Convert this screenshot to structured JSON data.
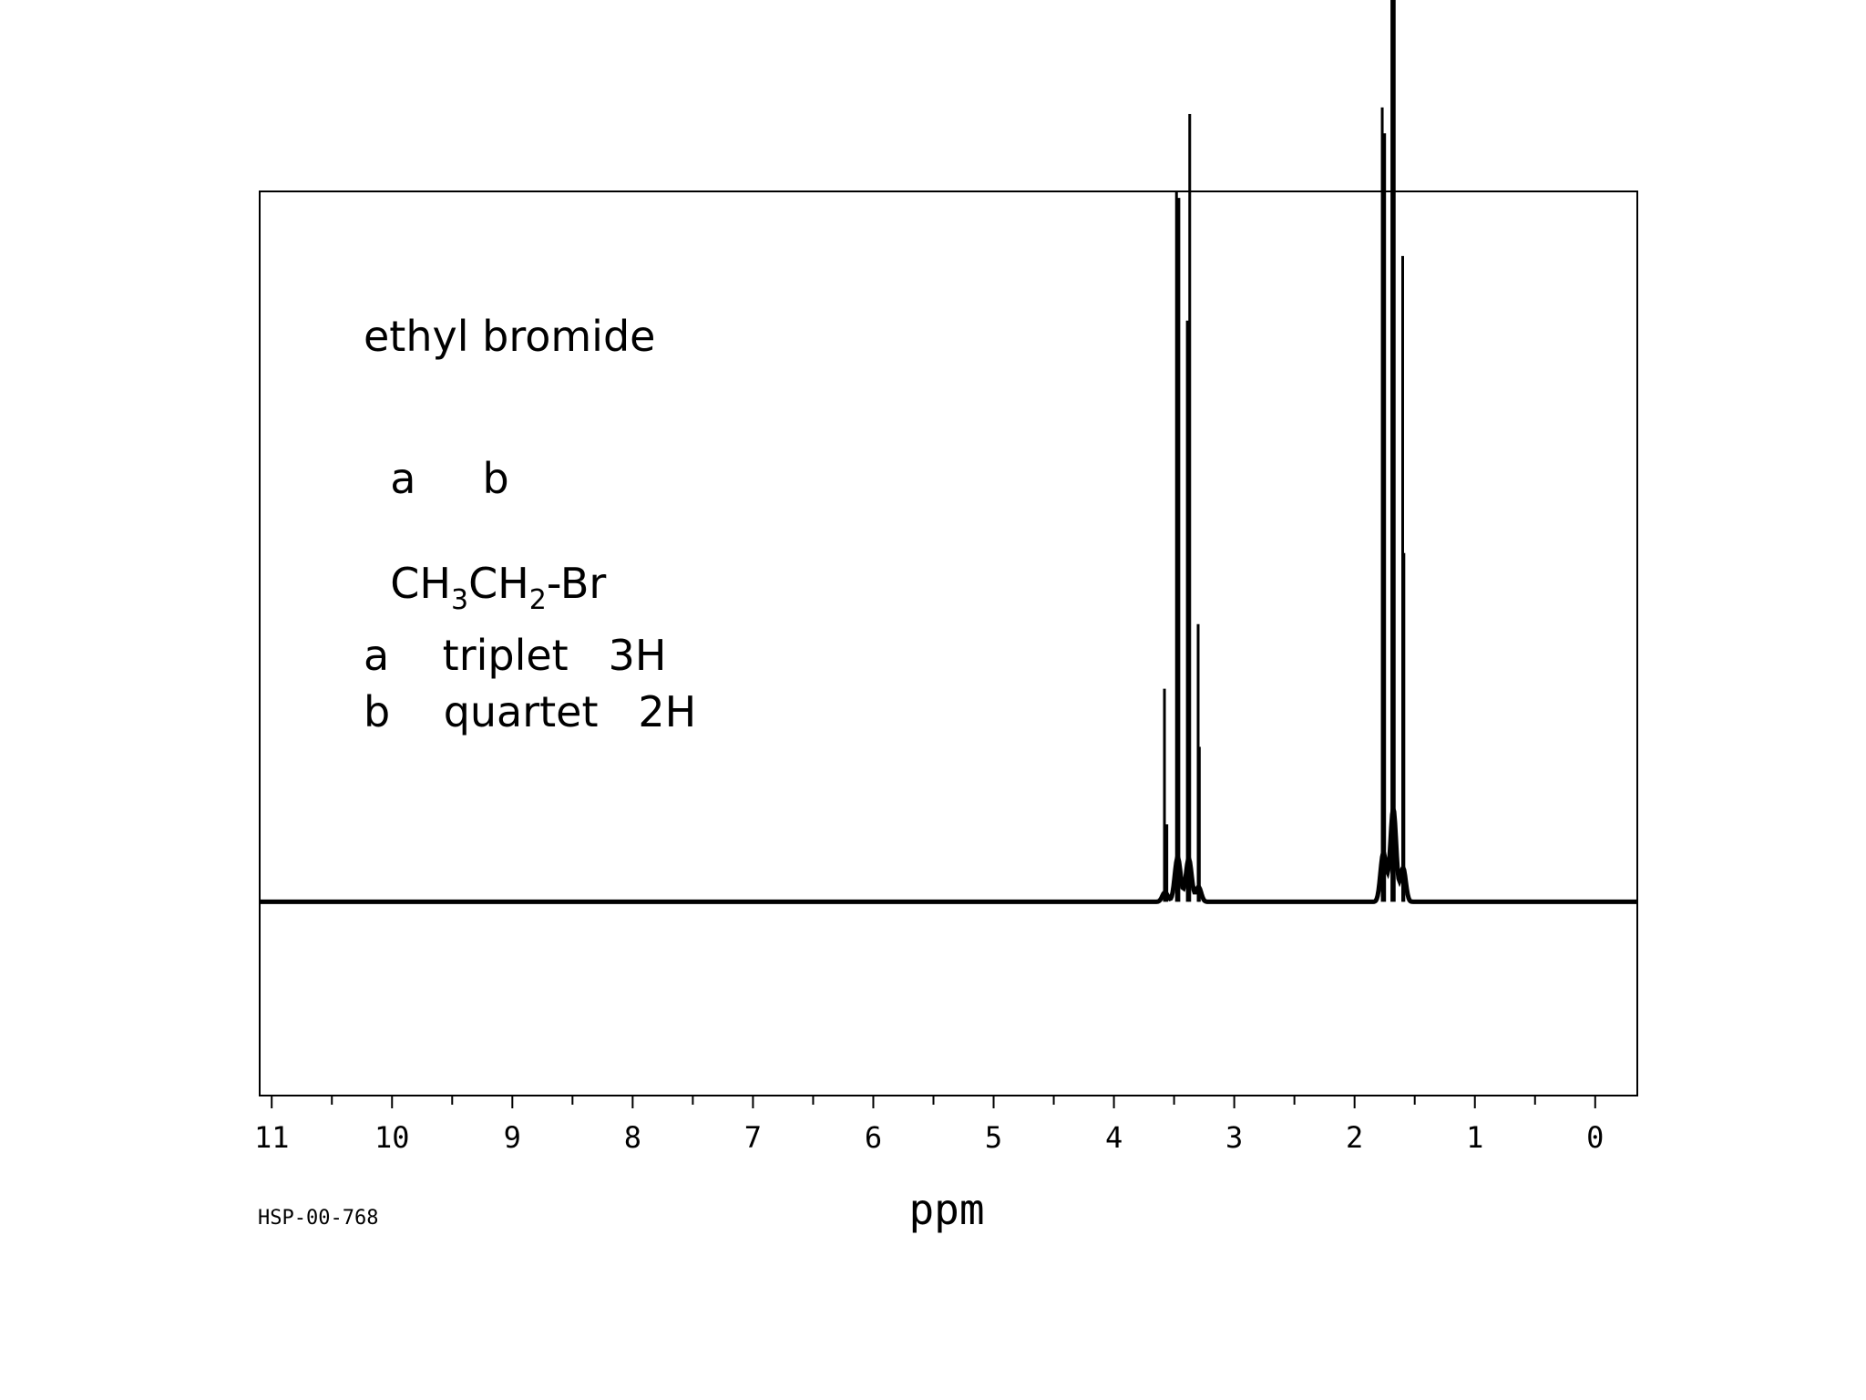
{
  "chart_data": {
    "type": "line",
    "title": "",
    "xlabel": "ppm",
    "ylabel": "",
    "xlim": [
      11.1,
      -0.35
    ],
    "ylim": [
      -0.3,
      1.1
    ],
    "x_direction": "reversed",
    "grid": false,
    "x_ticks": [
      11,
      10,
      9,
      8,
      7,
      6,
      5,
      4,
      3,
      2,
      1,
      0
    ],
    "x_tick_labels": [
      "11",
      "10",
      "9",
      "8",
      "7",
      "6",
      "5",
      "4",
      "3",
      "2",
      "1",
      "0"
    ],
    "spectrum_code": "HSP-00-768",
    "series": [
      {
        "peaks": [
          {
            "x": 3.58,
            "y": 0.33
          },
          {
            "x": 3.56,
            "y": 0.12
          },
          {
            "x": 3.48,
            "y": 1.1
          },
          {
            "x": 3.46,
            "y": 1.09
          },
          {
            "x": 3.39,
            "y": 0.9
          },
          {
            "x": 3.37,
            "y": 1.22
          },
          {
            "x": 3.3,
            "y": 0.43
          },
          {
            "x": 3.29,
            "y": 0.24
          },
          {
            "x": 1.77,
            "y": 1.23
          },
          {
            "x": 1.75,
            "y": 1.19
          },
          {
            "x": 1.69,
            "y": 1.94
          },
          {
            "x": 1.67,
            "y": 2.65
          },
          {
            "x": 1.6,
            "y": 1.0
          },
          {
            "x": 1.59,
            "y": 0.54
          }
        ]
      }
    ]
  },
  "annotation": {
    "compound": "ethyl bromide",
    "atom_labels": "  a     b",
    "formula": {
      "p1": "CH",
      "s1": "3",
      "p2": "CH",
      "s2": "2",
      "p3": "-Br"
    },
    "assignments": [
      "a    triplet   3H",
      "b    quartet   2H"
    ]
  }
}
